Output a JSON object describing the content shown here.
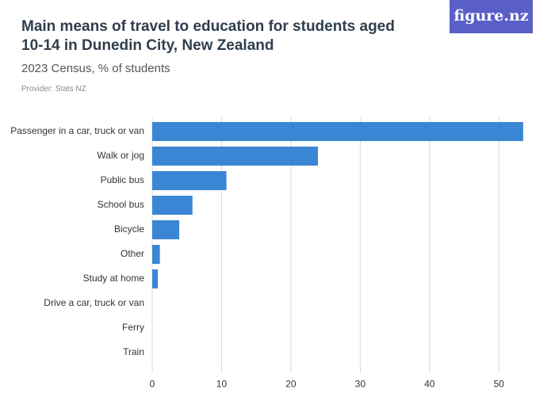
{
  "logo": "figure.nz",
  "chart_data": {
    "type": "bar",
    "orientation": "horizontal",
    "title": "Main means of travel to education for students aged 10-14 in Dunedin City, New Zealand",
    "subtitle": "2023 Census, % of students",
    "provider": "Provider: Stats NZ",
    "categories": [
      "Passenger in a car, truck or van",
      "Walk or jog",
      "Public bus",
      "School bus",
      "Bicycle",
      "Other",
      "Study at home",
      "Drive a car, truck or van",
      "Ferry",
      "Train"
    ],
    "values": [
      53.5,
      23.9,
      10.7,
      5.8,
      3.9,
      1.1,
      0.8,
      0,
      0,
      0
    ],
    "color": "#3b86d4",
    "xlim": [
      0,
      55
    ],
    "xticks": [
      0,
      10,
      20,
      30,
      40,
      50
    ],
    "grid": true
  }
}
